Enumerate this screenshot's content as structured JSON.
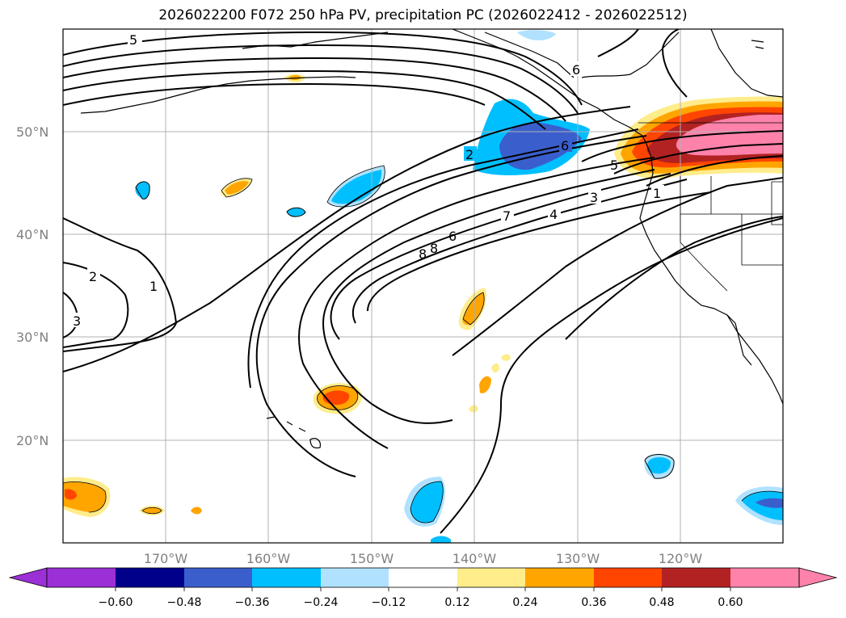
{
  "title": "2026022200 F072 250 hPa PV, precipitation PC (2026022412 - 2026022512)",
  "map": {
    "lat_labels": [
      "50°N",
      "40°N",
      "30°N",
      "20°N"
    ],
    "lon_labels": [
      "170°W",
      "160°W",
      "150°W",
      "140°W",
      "130°W",
      "120°W"
    ],
    "contour_labels": [
      "5",
      "6",
      "2",
      "6",
      "5",
      "3",
      "1",
      "4",
      "7",
      "8",
      "8",
      "6",
      "2",
      "1",
      "3"
    ]
  },
  "colorbar": {
    "tick_labels": [
      "−0.60",
      "−0.48",
      "−0.36",
      "−0.24",
      "−0.12",
      "0.12",
      "0.24",
      "0.36",
      "0.48",
      "0.60"
    ],
    "colors": [
      "#9b30d6",
      "#00008b",
      "#3a5fcd",
      "#00bfff",
      "#b0e2ff",
      "#ffffff",
      "#ffec8b",
      "#ffa500",
      "#ff4500",
      "#b22222",
      "#ff82ab",
      "#ff82ab"
    ]
  }
}
